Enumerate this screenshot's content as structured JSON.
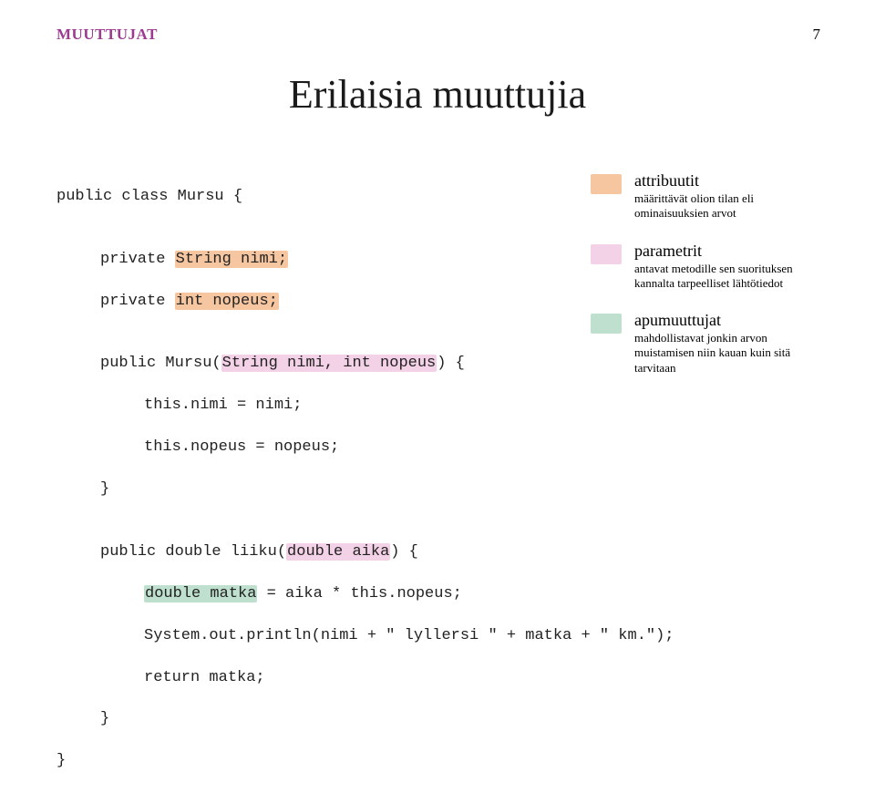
{
  "header": {
    "label": "MUUTTUJAT",
    "page": "7",
    "label_fontsize": 17,
    "label_color": "#9c3b8f",
    "page_fontsize": 17,
    "page_color": "#000000"
  },
  "title": {
    "text": "Erilaisia muuttujia",
    "fontsize": 44,
    "color": "#1b1b1b"
  },
  "code": {
    "fontsize": 17,
    "color": "#222222",
    "l0": "public class Mursu {",
    "l1": "",
    "l2a": "private ",
    "l2b": "String nimi;",
    "l3a": "private ",
    "l3b": "int nopeus;",
    "l4": "",
    "l5a": "public Mursu(",
    "l5b": "String nimi, int nopeus",
    "l5c": ") {",
    "l6": "this.nimi = nimi;",
    "l7": "this.nopeus = nopeus;",
    "l8": "}",
    "l9": "",
    "l10a": "public double liiku(",
    "l10b": "double aika",
    "l10c": ") {",
    "l11a": "double matka",
    "l11b": " = aika * this.nopeus;",
    "l12": "System.out.println(nimi + \" lyllersi \" + matka + \" km.\");",
    "l13": "return matka;",
    "l14": "}",
    "l15": "}"
  },
  "colors": {
    "attr": "#f6c6a0",
    "param": "#f3d1e6",
    "local": "#bfe0cf"
  },
  "legend": {
    "title_fontsize": 18,
    "desc_fontsize": 13,
    "items": [
      {
        "title": "attribuutit",
        "desc": "määrittävät olion tilan eli ominaisuuksien arvot",
        "color_key": "attr"
      },
      {
        "title": "parametrit",
        "desc": "antavat metodille sen suorituksen kannalta tarpeelliset lähtötiedot",
        "color_key": "param"
      },
      {
        "title": "apumuuttujat",
        "desc": "mahdollistavat jonkin arvon muistamisen niin kauan kuin sitä tarvitaan",
        "color_key": "local"
      }
    ]
  }
}
